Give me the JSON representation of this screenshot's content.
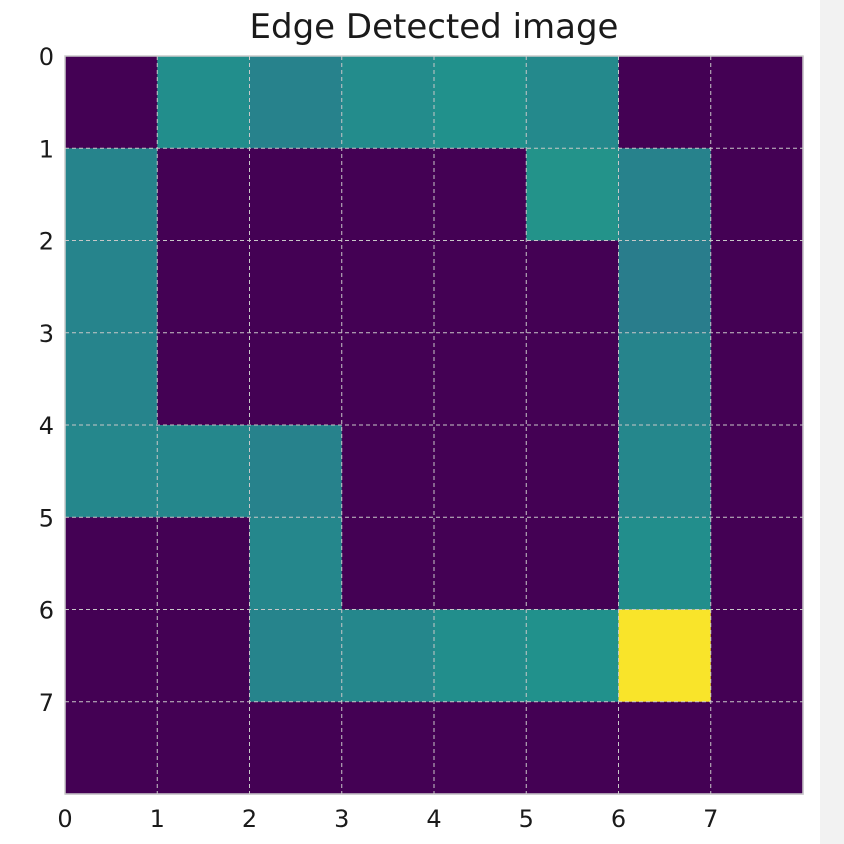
{
  "chart_data": {
    "type": "heatmap",
    "title": "Edge Detected image",
    "colormap": "viridis",
    "x_ticks": [
      "0",
      "1",
      "2",
      "3",
      "4",
      "5",
      "6",
      "7"
    ],
    "y_ticks": [
      "0",
      "1",
      "2",
      "3",
      "4",
      "5",
      "6",
      "7"
    ],
    "xlim": [
      0,
      8
    ],
    "ylim": [
      0,
      8
    ],
    "y_inverted": true,
    "grid": true,
    "grid_style": "dashed",
    "values": [
      [
        0.0,
        0.49,
        0.44,
        0.48,
        0.5,
        0.47,
        0.0,
        0.0
      ],
      [
        0.45,
        0.0,
        0.0,
        0.0,
        0.0,
        0.51,
        0.44,
        0.0
      ],
      [
        0.45,
        0.0,
        0.0,
        0.0,
        0.0,
        0.0,
        0.42,
        0.0
      ],
      [
        0.45,
        0.0,
        0.0,
        0.0,
        0.0,
        0.0,
        0.45,
        0.0
      ],
      [
        0.46,
        0.46,
        0.44,
        0.0,
        0.0,
        0.0,
        0.46,
        0.0
      ],
      [
        0.0,
        0.0,
        0.46,
        0.0,
        0.0,
        0.0,
        0.49,
        0.0
      ],
      [
        0.0,
        0.0,
        0.45,
        0.46,
        0.49,
        0.5,
        1.0,
        0.0
      ],
      [
        0.0,
        0.0,
        0.0,
        0.0,
        0.0,
        0.0,
        0.0,
        0.0
      ]
    ]
  }
}
